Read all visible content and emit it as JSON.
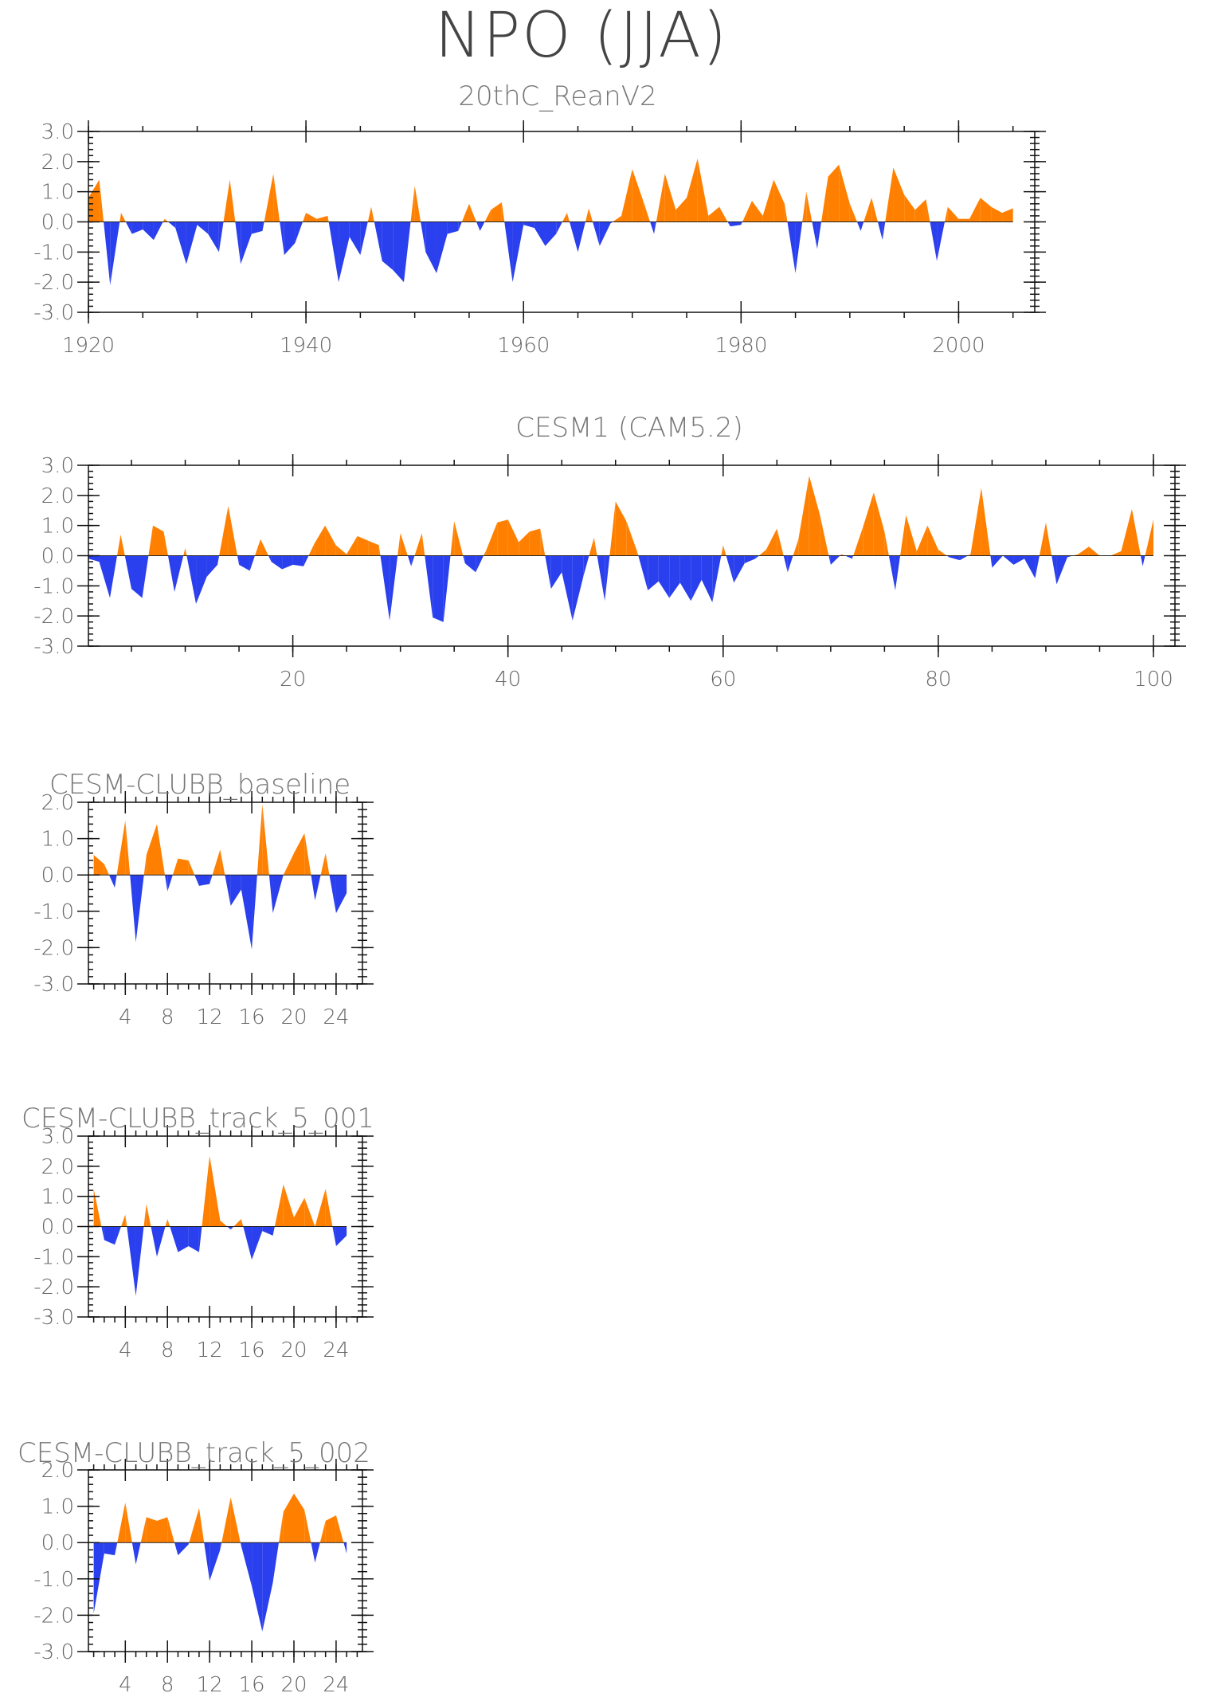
{
  "title": "NPO (JJA)",
  "colors": {
    "positive": "#ff8000",
    "negative": "#2a3fed"
  },
  "chart_data": [
    {
      "type": "area",
      "title": "20thC_ReanV2",
      "xlabel": "",
      "ylabel": "",
      "x_start": 1920,
      "xlim": [
        1920,
        2007
      ],
      "ylim": [
        -3,
        3
      ],
      "x_ticks": [
        1920,
        1940,
        1960,
        1980,
        2000
      ],
      "x_tick_labels": [
        "1920",
        "1940",
        "1960",
        "1980",
        "2000"
      ],
      "y_ticks": [
        -3,
        -2,
        -1,
        0,
        1,
        2,
        3
      ],
      "y_tick_labels": [
        "-3.0",
        "-2.0",
        "-1.0",
        "0.0",
        "1.0",
        "2.0",
        "3.0"
      ],
      "values": [
        0.8,
        1.4,
        -2.1,
        0.3,
        -0.4,
        -0.25,
        -0.6,
        0.1,
        -0.2,
        -1.4,
        -0.1,
        -0.4,
        -1.0,
        1.4,
        -1.4,
        -0.4,
        -0.3,
        1.6,
        -1.1,
        -0.7,
        0.3,
        0.1,
        0.2,
        -2.0,
        -0.5,
        -1.1,
        0.5,
        -1.3,
        -1.6,
        -2.0,
        1.2,
        -1.0,
        -1.7,
        -0.4,
        -0.3,
        0.6,
        -0.3,
        0.4,
        0.65,
        -2.0,
        -0.1,
        -0.2,
        -0.8,
        -0.4,
        0.3,
        -1.0,
        0.45,
        -0.8,
        -0.05,
        0.2,
        1.75,
        0.7,
        -0.4,
        1.6,
        0.4,
        0.8,
        2.1,
        0.2,
        0.5,
        -0.15,
        -0.1,
        0.7,
        0.2,
        1.4,
        0.6,
        -1.7,
        1.0,
        -0.9,
        1.5,
        1.9,
        0.6,
        -0.3,
        0.8,
        -0.6,
        1.8,
        0.9,
        0.4,
        0.75,
        -1.3,
        0.5,
        0.1,
        0.1,
        0.8,
        0.5,
        0.3,
        0.45
      ]
    },
    {
      "type": "area",
      "title": "CESM1 (CAM5.2)",
      "xlabel": "",
      "ylabel": "",
      "x_start": 1,
      "xlim": [
        1,
        102
      ],
      "ylim": [
        -3,
        3
      ],
      "x_ticks": [
        20,
        40,
        60,
        80,
        100
      ],
      "x_tick_labels": [
        "20",
        "40",
        "60",
        "80",
        "100"
      ],
      "y_ticks": [
        -3,
        -2,
        -1,
        0,
        1,
        2,
        3
      ],
      "y_tick_labels": [
        "-3.0",
        "-2.0",
        "-1.0",
        "0.0",
        "1.0",
        "2.0",
        "3.0"
      ],
      "values": [
        -0.1,
        -0.2,
        -1.4,
        0.7,
        -1.1,
        -1.4,
        1.0,
        0.8,
        -1.2,
        0.25,
        -1.6,
        -0.7,
        -0.3,
        1.65,
        -0.3,
        -0.5,
        0.55,
        -0.2,
        -0.45,
        -0.3,
        -0.35,
        0.4,
        1.0,
        0.35,
        0.05,
        0.65,
        0.5,
        0.35,
        -2.15,
        0.75,
        -0.35,
        0.75,
        -2.05,
        -2.2,
        1.15,
        -0.25,
        -0.55,
        0.2,
        1.1,
        1.2,
        0.45,
        0.8,
        0.9,
        -1.1,
        -0.55,
        -2.15,
        -0.7,
        0.6,
        -1.5,
        1.8,
        1.15,
        0.15,
        -1.15,
        -0.85,
        -1.4,
        -0.9,
        -1.5,
        -0.8,
        -1.55,
        0.35,
        -0.9,
        -0.25,
        -0.1,
        0.2,
        0.9,
        -0.55,
        0.55,
        2.65,
        1.35,
        -0.3,
        0.05,
        -0.1,
        0.95,
        2.1,
        0.8,
        -1.15,
        1.35,
        0.15,
        1.0,
        0.2,
        -0.05,
        -0.15,
        0.05,
        2.25,
        -0.4,
        0.0,
        -0.3,
        -0.1,
        -0.75,
        1.1,
        -0.95,
        -0.05,
        0.05,
        0.3,
        0.0,
        0.0,
        0.15,
        1.55,
        -0.35,
        1.2
      ]
    },
    {
      "type": "area",
      "title": "CESM-CLUBB_baseline",
      "xlabel": "",
      "ylabel": "",
      "x_start": 1,
      "xlim": [
        0.5,
        26.5
      ],
      "ylim": [
        -3,
        2
      ],
      "x_ticks": [
        4,
        8,
        12,
        16,
        20,
        24
      ],
      "x_tick_labels": [
        "4",
        "8",
        "12",
        "16",
        "20",
        "24"
      ],
      "y_ticks": [
        -3,
        -2,
        -1,
        0,
        1,
        2
      ],
      "y_tick_labels": [
        "-3.0",
        "-2.0",
        "-1.0",
        "0.0",
        "1.0",
        "2.0"
      ],
      "values": [
        0.55,
        0.3,
        -0.35,
        1.5,
        -1.85,
        0.55,
        1.4,
        -0.45,
        0.45,
        0.4,
        -0.3,
        -0.25,
        0.7,
        -0.85,
        -0.4,
        -2.05,
        1.95,
        -1.05,
        0.0,
        0.6,
        1.15,
        -0.7,
        0.6,
        -1.05,
        -0.5
      ]
    },
    {
      "type": "area",
      "title": "CESM-CLUBB_track_5_001",
      "xlabel": "",
      "ylabel": "",
      "x_start": 1,
      "xlim": [
        0.5,
        26.5
      ],
      "ylim": [
        -3,
        3
      ],
      "x_ticks": [
        4,
        8,
        12,
        16,
        20,
        24
      ],
      "x_tick_labels": [
        "4",
        "8",
        "12",
        "16",
        "20",
        "24"
      ],
      "y_ticks": [
        -3,
        -2,
        -1,
        0,
        1,
        2,
        3
      ],
      "y_tick_labels": [
        "-3.0",
        "-2.0",
        "-1.0",
        "0.0",
        "1.0",
        "2.0",
        "3.0"
      ],
      "values": [
        1.25,
        -0.45,
        -0.6,
        0.4,
        -2.3,
        0.75,
        -1.0,
        0.25,
        -0.85,
        -0.65,
        -0.85,
        2.35,
        0.2,
        -0.1,
        0.25,
        -1.1,
        -0.15,
        -0.3,
        1.4,
        0.3,
        0.95,
        0.0,
        1.25,
        -0.65,
        -0.3
      ]
    },
    {
      "type": "area",
      "title": "CESM-CLUBB_track_5_002",
      "xlabel": "",
      "ylabel": "",
      "x_start": 1,
      "xlim": [
        0.5,
        26.5
      ],
      "ylim": [
        -3,
        2
      ],
      "x_ticks": [
        4,
        8,
        12,
        16,
        20,
        24
      ],
      "x_tick_labels": [
        "4",
        "8",
        "12",
        "16",
        "20",
        "24"
      ],
      "y_ticks": [
        -3,
        -2,
        -1,
        0,
        1,
        2
      ],
      "y_tick_labels": [
        "-3.0",
        "-2.0",
        "-1.0",
        "0.0",
        "1.0",
        "2.0"
      ],
      "values": [
        -1.95,
        -0.3,
        -0.35,
        1.1,
        -0.6,
        0.7,
        0.6,
        0.7,
        -0.35,
        -0.05,
        0.95,
        -1.05,
        -0.2,
        1.25,
        -0.1,
        -1.2,
        -2.45,
        -1.1,
        0.85,
        1.35,
        0.9,
        -0.55,
        0.6,
        0.75,
        -0.3
      ]
    }
  ]
}
